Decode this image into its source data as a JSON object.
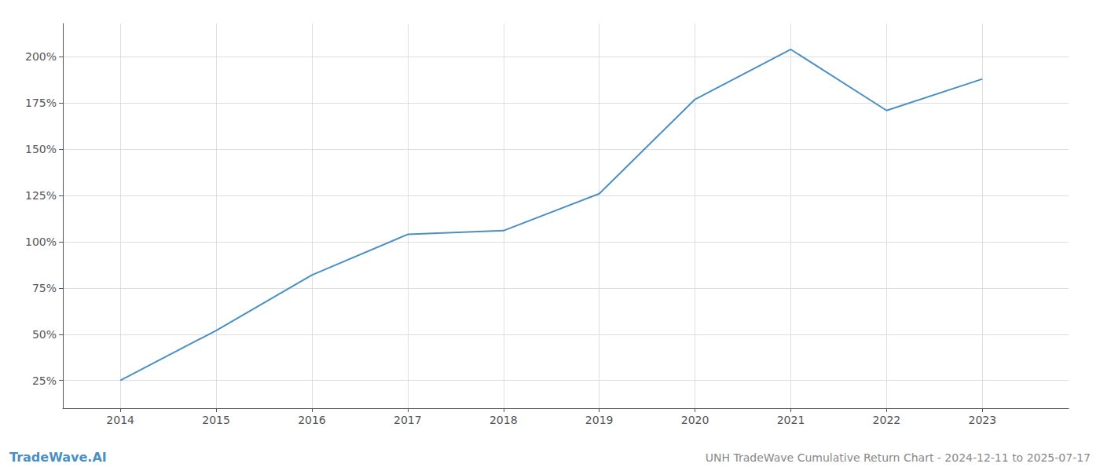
{
  "chart_data": {
    "type": "line",
    "title": "UNH TradeWave Cumulative Return Chart - 2024-12-11 to 2025-07-17",
    "annotations": [
      "TradeWave.AI"
    ],
    "x": [
      2014,
      2015,
      2016,
      2017,
      2018,
      2019,
      2020,
      2021,
      2022,
      2023
    ],
    "values": [
      25,
      52,
      82,
      104,
      106,
      126,
      177,
      204,
      171,
      188
    ],
    "color": "#4a90c4",
    "xlim": [
      2013.4,
      2023.9
    ],
    "ylim": [
      10,
      218
    ],
    "xticks": [
      2014,
      2015,
      2016,
      2017,
      2018,
      2019,
      2020,
      2021,
      2022,
      2023
    ],
    "yticks": [
      {
        "value": 25,
        "label": "25%"
      },
      {
        "value": 50,
        "label": "50%"
      },
      {
        "value": 75,
        "label": "75%"
      },
      {
        "value": 100,
        "label": "100%"
      },
      {
        "value": 125,
        "label": "125%"
      },
      {
        "value": 150,
        "label": "150%"
      },
      {
        "value": 175,
        "label": "175%"
      },
      {
        "value": 200,
        "label": "200%"
      }
    ],
    "grid": true
  }
}
